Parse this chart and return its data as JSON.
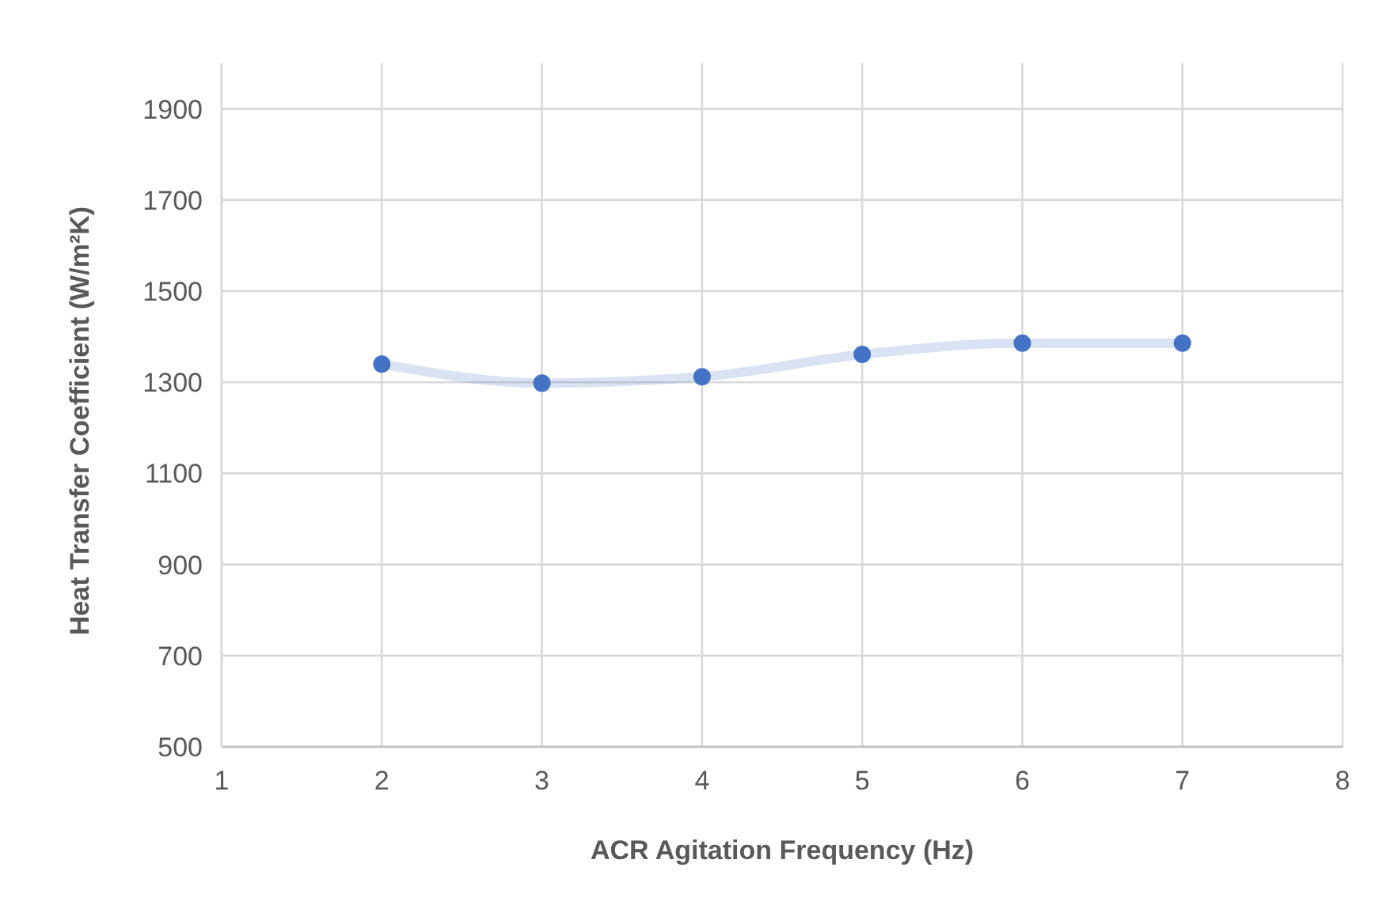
{
  "chart_data": {
    "type": "line",
    "xlabel": "ACR Agitation Frequency (Hz)",
    "ylabel": "Heat Transfer Coefficient (W/m²K)",
    "x": [
      2,
      3,
      4,
      5,
      6,
      7
    ],
    "series": [
      {
        "color": "#4472c4",
        "values": [
          1340,
          1298,
          1312,
          1361,
          1386,
          1386
        ]
      }
    ],
    "xlim": [
      1,
      8
    ],
    "xticks": [
      1,
      2,
      3,
      4,
      5,
      6,
      7,
      8
    ],
    "ylim": [
      500,
      2000
    ],
    "yticks": [
      500,
      700,
      900,
      1100,
      1300,
      1500,
      1700,
      1900
    ],
    "grid": true,
    "marker": "circle",
    "line_style": "solid"
  }
}
